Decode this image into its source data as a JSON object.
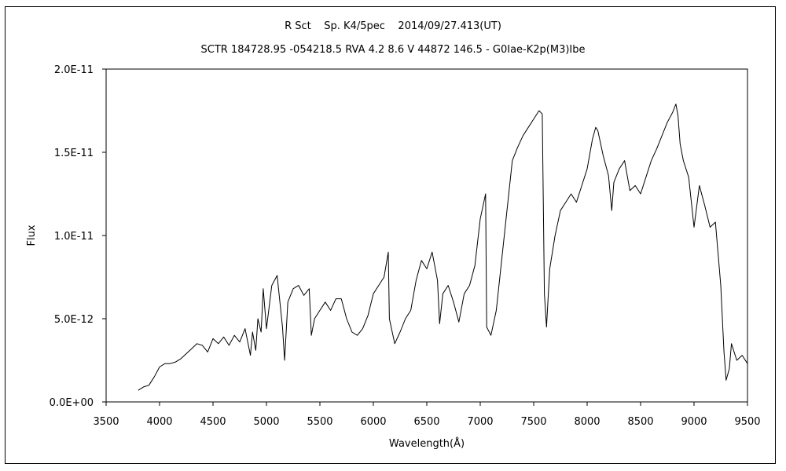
{
  "chart_data": {
    "type": "line",
    "title": "R Sct    Sp. K4/5pec    2014/09/27.413(UT)",
    "subtitle": "SCTR 184728.95 -054218.5 RVA 4.2 8.6 V 44872 146.5 - G0Iae-K2p(M3)Ibe",
    "xlabel": "Wavelength(Å)",
    "ylabel": "Flux",
    "xlim": [
      3500,
      9500
    ],
    "ylim": [
      0,
      2e-11
    ],
    "grid": false,
    "x_ticks": [
      "3500",
      "4000",
      "4500",
      "5000",
      "5500",
      "6000",
      "6500",
      "7000",
      "7500",
      "8000",
      "8500",
      "9000",
      "9500"
    ],
    "y_ticks": [
      "0.0E+00",
      "5.0E-12",
      "1.0E-11",
      "1.5E-11",
      "2.0E-11"
    ],
    "line_color": "#000000",
    "series": [
      {
        "x": [
          3800,
          3850,
          3900,
          3950,
          4000,
          4050,
          4100,
          4150,
          4200,
          4250,
          4300,
          4350,
          4400,
          4450,
          4500,
          4550,
          4600,
          4650,
          4700,
          4750,
          4800,
          4850,
          4870,
          4900,
          4920,
          4950,
          4970,
          5000,
          5050,
          5100,
          5150,
          5170,
          5200,
          5250,
          5300,
          5350,
          5400,
          5420,
          5450,
          5500,
          5550,
          5600,
          5650,
          5700,
          5750,
          5800,
          5850,
          5900,
          5950,
          6000,
          6050,
          6100,
          6140,
          6150,
          6200,
          6250,
          6300,
          6350,
          6400,
          6450,
          6500,
          6550,
          6600,
          6620,
          6650,
          6700,
          6750,
          6800,
          6850,
          6900,
          6950,
          7000,
          7050,
          7060,
          7100,
          7150,
          7200,
          7250,
          7300,
          7350,
          7400,
          7450,
          7500,
          7550,
          7580,
          7600,
          7620,
          7650,
          7700,
          7750,
          7800,
          7850,
          7900,
          7950,
          8000,
          8050,
          8080,
          8100,
          8150,
          8200,
          8230,
          8250,
          8300,
          8350,
          8400,
          8450,
          8500,
          8550,
          8600,
          8650,
          8700,
          8750,
          8800,
          8830,
          8850,
          8870,
          8900,
          8950,
          9000,
          9050,
          9100,
          9150,
          9200,
          9250,
          9280,
          9300,
          9330,
          9350,
          9400,
          9450,
          9500
        ],
        "y": [
          7e-13,
          9e-13,
          1e-12,
          1.5e-12,
          2.1e-12,
          2.3e-12,
          2.3e-12,
          2.4e-12,
          2.6e-12,
          2.9e-12,
          3.2e-12,
          3.5e-12,
          3.4e-12,
          3e-12,
          3.8e-12,
          3.5e-12,
          3.9e-12,
          3.4e-12,
          4e-12,
          3.6e-12,
          4.4e-12,
          2.8e-12,
          4.2e-12,
          3.1e-12,
          5e-12,
          4.2e-12,
          6.8e-12,
          4.4e-12,
          7e-12,
          7.6e-12,
          4.5e-12,
          2.5e-12,
          6e-12,
          6.8e-12,
          7e-12,
          6.4e-12,
          6.8e-12,
          4e-12,
          5e-12,
          5.5e-12,
          6e-12,
          5.5e-12,
          6.2e-12,
          6.2e-12,
          5e-12,
          4.2e-12,
          4e-12,
          4.4e-12,
          5.2e-12,
          6.5e-12,
          7e-12,
          7.5e-12,
          9e-12,
          5e-12,
          3.5e-12,
          4.2e-12,
          5e-12,
          5.5e-12,
          7.3e-12,
          8.5e-12,
          8e-12,
          9e-12,
          7.3e-12,
          4.7e-12,
          6.5e-12,
          7e-12,
          6e-12,
          4.8e-12,
          6.5e-12,
          7e-12,
          8.2e-12,
          1.1e-11,
          1.25e-11,
          4.5e-12,
          4e-12,
          5.5e-12,
          8.5e-12,
          1.15e-11,
          1.45e-11,
          1.53e-11,
          1.6e-11,
          1.65e-11,
          1.7e-11,
          1.75e-11,
          1.73e-11,
          6.5e-12,
          4.5e-12,
          8e-12,
          1e-11,
          1.15e-11,
          1.2e-11,
          1.25e-11,
          1.2e-11,
          1.3e-11,
          1.4e-11,
          1.58e-11,
          1.65e-11,
          1.63e-11,
          1.48e-11,
          1.36e-11,
          1.15e-11,
          1.32e-11,
          1.4e-11,
          1.45e-11,
          1.27e-11,
          1.3e-11,
          1.25e-11,
          1.35e-11,
          1.45e-11,
          1.52e-11,
          1.6e-11,
          1.68e-11,
          1.74e-11,
          1.79e-11,
          1.72e-11,
          1.55e-11,
          1.45e-11,
          1.35e-11,
          1.05e-11,
          1.3e-11,
          1.18e-11,
          1.05e-11,
          1.08e-11,
          7e-12,
          3e-12,
          1.3e-12,
          2e-12,
          3.5e-12,
          2.5e-12,
          2.8e-12,
          2.3e-12
        ]
      }
    ]
  }
}
